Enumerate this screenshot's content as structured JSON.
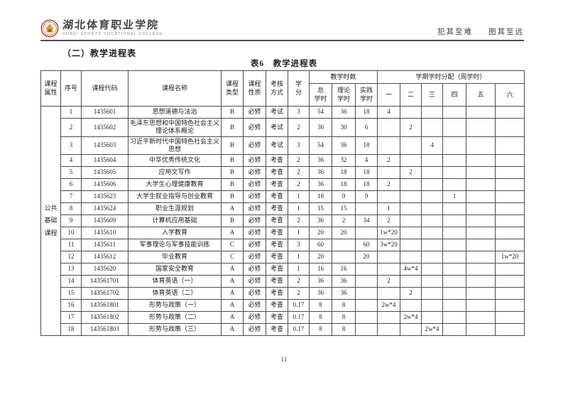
{
  "header": {
    "college_name_cn": "湖北体育职业学院",
    "college_name_en": "HUBEI SPORTS VOCATIONAL COLLEGE",
    "motto_part1": "犯其至难",
    "motto_part2": "图其至远",
    "seal_red": "#b5342c",
    "seal_gold": "#d9a428"
  },
  "section_title": "（二）教学进程表",
  "table_title": "表6　教学进程表",
  "page_number": "11",
  "table": {
    "headers": {
      "course_attr": "课程\n属性",
      "seq": "序号",
      "code": "课程代码",
      "name": "课程名称",
      "type": "课程\n类型",
      "nature": "课程\n性质",
      "assess": "考核\n方式",
      "credit": "学\n分",
      "teaching_hours_group": "教学时数",
      "total": "总\n学时",
      "theory": "理论\n学时",
      "practice": "实践\n学时",
      "semester_group": "学期学时分配（周学时）",
      "semesters": [
        "一",
        "二",
        "三",
        "四",
        "五",
        "六"
      ]
    },
    "category_label": "公共基础课程",
    "rows": [
      {
        "seq": "1",
        "code": "1435601",
        "name": "思想道德与法治",
        "type": "B",
        "nature": "必修",
        "assess": "考试",
        "credit": "3",
        "total": "54",
        "theory": "36",
        "practice": "18",
        "s1": "4",
        "s2": "",
        "s3": "",
        "s4": "",
        "s5": "",
        "s6": ""
      },
      {
        "seq": "2",
        "code": "1435602",
        "name": "毛泽东思想和中国特色社会主义理论体系概论",
        "type": "B",
        "nature": "必修",
        "assess": "考试",
        "credit": "2",
        "total": "36",
        "theory": "30",
        "practice": "6",
        "s1": "",
        "s2": "2",
        "s3": "",
        "s4": "",
        "s5": "",
        "s6": ""
      },
      {
        "seq": "3",
        "code": "1435603",
        "name": "习近平新时代中国特色社会主义思想",
        "type": "B",
        "nature": "必修",
        "assess": "考试",
        "credit": "3",
        "total": "54",
        "theory": "36",
        "practice": "18",
        "s1": "",
        "s2": "",
        "s3": "4",
        "s4": "",
        "s5": "",
        "s6": ""
      },
      {
        "seq": "4",
        "code": "1435604",
        "name": "中华优秀传统文化",
        "type": "B",
        "nature": "必修",
        "assess": "考查",
        "credit": "2",
        "total": "36",
        "theory": "32",
        "practice": "4",
        "s1": "2",
        "s2": "",
        "s3": "",
        "s4": "",
        "s5": "",
        "s6": ""
      },
      {
        "seq": "5",
        "code": "1435605",
        "name": "应用文写作",
        "type": "B",
        "nature": "必修",
        "assess": "考查",
        "credit": "2",
        "total": "36",
        "theory": "18",
        "practice": "18",
        "s1": "",
        "s2": "2",
        "s3": "",
        "s4": "",
        "s5": "",
        "s6": ""
      },
      {
        "seq": "6",
        "code": "1435606",
        "name": "大学生心理健康教育",
        "type": "B",
        "nature": "必修",
        "assess": "考查",
        "credit": "2",
        "total": "36",
        "theory": "18",
        "practice": "18",
        "s1": "2",
        "s2": "",
        "s3": "",
        "s4": "",
        "s5": "",
        "s6": ""
      },
      {
        "seq": "7",
        "code": "1435623",
        "name": "大学生就业指导与创业教育",
        "type": "B",
        "nature": "必修",
        "assess": "考查",
        "credit": "1",
        "total": "18",
        "theory": "9",
        "practice": "9",
        "s1": "",
        "s2": "",
        "s3": "",
        "s4": "1",
        "s5": "",
        "s6": ""
      },
      {
        "seq": "8",
        "code": "1435624",
        "name": "职业生涯规划",
        "type": "A",
        "nature": "必修",
        "assess": "考查",
        "credit": "1",
        "total": "15",
        "theory": "15",
        "practice": "",
        "s1": "1",
        "s2": "",
        "s3": "",
        "s4": "",
        "s5": "",
        "s6": ""
      },
      {
        "seq": "9",
        "code": "1435609",
        "name": "计算机应用基础",
        "type": "B",
        "nature": "必修",
        "assess": "考查",
        "credit": "2",
        "total": "36",
        "theory": "2",
        "practice": "34",
        "s1": "2",
        "s2": "",
        "s3": "",
        "s4": "",
        "s5": "",
        "s6": ""
      },
      {
        "seq": "10",
        "code": "1435610",
        "name": "入学教育",
        "type": "A",
        "nature": "必修",
        "assess": "考查",
        "credit": "1",
        "total": "20",
        "theory": "20",
        "practice": "",
        "s1": "1w*20",
        "s2": "",
        "s3": "",
        "s4": "",
        "s5": "",
        "s6": ""
      },
      {
        "seq": "11",
        "code": "1435611",
        "name": "军事理论与军事技能训练",
        "type": "C",
        "nature": "必修",
        "assess": "考查",
        "credit": "3",
        "total": "60",
        "theory": "",
        "practice": "60",
        "s1": "3w*20",
        "s2": "",
        "s3": "",
        "s4": "",
        "s5": "",
        "s6": ""
      },
      {
        "seq": "12",
        "code": "1435612",
        "name": "毕业教育",
        "type": "C",
        "nature": "必修",
        "assess": "考查",
        "credit": "1",
        "total": "20",
        "theory": "",
        "practice": "20",
        "s1": "",
        "s2": "",
        "s3": "",
        "s4": "",
        "s5": "",
        "s6": "1w*20"
      },
      {
        "seq": "13",
        "code": "1435620",
        "name": "国家安全教育",
        "type": "A",
        "nature": "必修",
        "assess": "考查",
        "credit": "1",
        "total": "16",
        "theory": "16",
        "practice": "",
        "s1": "",
        "s2": "4w*4",
        "s3": "",
        "s4": "",
        "s5": "",
        "s6": ""
      },
      {
        "seq": "14",
        "code": "143561701",
        "name": "体育英语（一）",
        "type": "A",
        "nature": "必修",
        "assess": "考查",
        "credit": "2",
        "total": "36",
        "theory": "36",
        "practice": "",
        "s1": "2",
        "s2": "",
        "s3": "",
        "s4": "",
        "s5": "",
        "s6": ""
      },
      {
        "seq": "15",
        "code": "143561702",
        "name": "体育英语（二）",
        "type": "A",
        "nature": "必修",
        "assess": "考查",
        "credit": "2",
        "total": "36",
        "theory": "36",
        "practice": "",
        "s1": "",
        "s2": "2",
        "s3": "",
        "s4": "",
        "s5": "",
        "s6": ""
      },
      {
        "seq": "16",
        "code": "143561801",
        "name": "形势与政策（一）",
        "type": "A",
        "nature": "必修",
        "assess": "考查",
        "credit": "0.17",
        "total": "8",
        "theory": "8",
        "practice": "",
        "s1": "2w*4",
        "s2": "",
        "s3": "",
        "s4": "",
        "s5": "",
        "s6": ""
      },
      {
        "seq": "17",
        "code": "143561802",
        "name": "形势与政策（二）",
        "type": "A",
        "nature": "必修",
        "assess": "考查",
        "credit": "0.17",
        "total": "8",
        "theory": "8",
        "practice": "",
        "s1": "",
        "s2": "2w*4",
        "s3": "",
        "s4": "",
        "s5": "",
        "s6": ""
      },
      {
        "seq": "18",
        "code": "143561803",
        "name": "形势与政策（三）",
        "type": "A",
        "nature": "必修",
        "assess": "考查",
        "credit": "0.17",
        "total": "8",
        "theory": "8",
        "practice": "",
        "s1": "",
        "s2": "",
        "s3": "2w*4",
        "s4": "",
        "s5": "",
        "s6": ""
      }
    ]
  }
}
